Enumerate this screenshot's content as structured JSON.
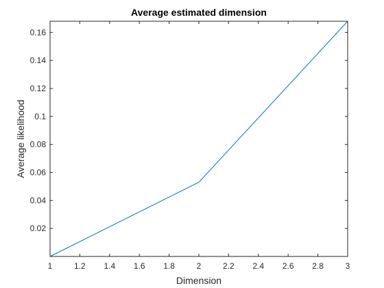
{
  "chart_data": {
    "type": "line",
    "title": "Average estimated dimension",
    "xlabel": "Dimension",
    "ylabel": "Average likelihood",
    "xlim": [
      1,
      3
    ],
    "ylim": [
      0,
      0.168
    ],
    "xticks": [
      1,
      1.2,
      1.4,
      1.6,
      1.8,
      2,
      2.2,
      2.4,
      2.6,
      2.8,
      3
    ],
    "xtick_labels": [
      "1",
      "1.2",
      "1.4",
      "1.6",
      "1.8",
      "2",
      "2.2",
      "2.4",
      "2.6",
      "2.8",
      "3"
    ],
    "yticks": [
      0.02,
      0.04,
      0.06,
      0.08,
      0.1,
      0.12,
      0.14,
      0.16
    ],
    "ytick_labels": [
      "0.02",
      "0.04",
      "0.06",
      "0.08",
      "0.1",
      "0.12",
      "0.14",
      "0.16"
    ],
    "grid": false,
    "line_color": "#0072bd",
    "axis_color": "#262626",
    "series": [
      {
        "x": [
          1,
          2,
          3
        ],
        "y": [
          0,
          0.053,
          0.168
        ]
      }
    ]
  }
}
